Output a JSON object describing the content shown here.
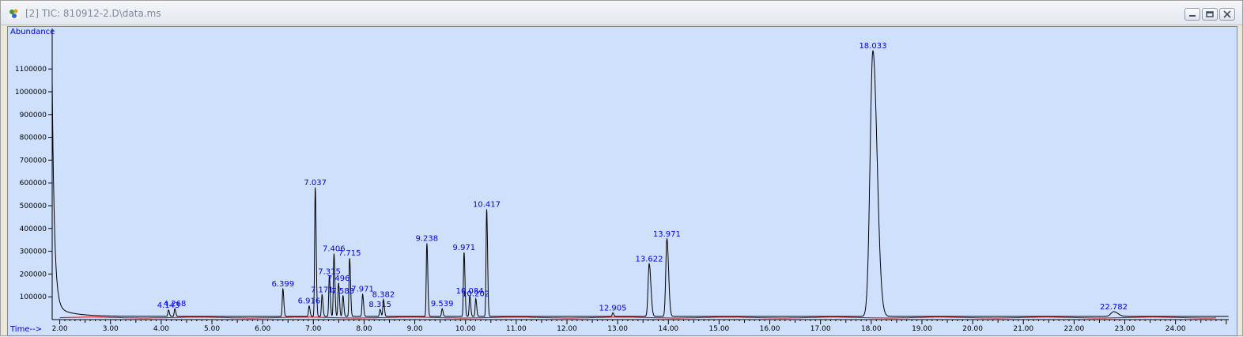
{
  "window": {
    "title": "[2] TIC: 810912-2.D\\data.ms",
    "icon": "chromatogram-app-icon",
    "controls": [
      "minimize-icon",
      "restore-icon",
      "close-icon"
    ]
  },
  "colors": {
    "plot_bg": "#cfe0fc",
    "trace": "#000000",
    "baseline": "#e00000",
    "peak_label": "#0000e0",
    "axis_text": "#0000cc"
  },
  "chart_data": {
    "type": "line",
    "ylabel": "Abundance",
    "xlabel": "Time-->",
    "xlim": [
      1.85,
      25.05
    ],
    "ylim": [
      0,
      1250000
    ],
    "xticks": [
      "2.00",
      "3.00",
      "4.00",
      "5.00",
      "6.00",
      "7.00",
      "8.00",
      "9.00",
      "10.00",
      "11.00",
      "12.00",
      "13.00",
      "14.00",
      "15.00",
      "16.00",
      "17.00",
      "18.00",
      "19.00",
      "20.00",
      "21.00",
      "22.00",
      "23.00",
      "24.00"
    ],
    "yticks": [
      "100000",
      "200000",
      "300000",
      "400000",
      "500000",
      "600000",
      "700000",
      "800000",
      "900000",
      "1000000",
      "1100000"
    ],
    "peaks": [
      {
        "label": "4.143",
        "x": 4.143,
        "y": 42000
      },
      {
        "label": "4.268",
        "x": 4.268,
        "y": 48000
      },
      {
        "label": "6.399",
        "x": 6.399,
        "y": 135000
      },
      {
        "label": "6.916",
        "x": 6.916,
        "y": 60000
      },
      {
        "label": "7.037",
        "x": 7.037,
        "y": 580000
      },
      {
        "label": "7.171",
        "x": 7.171,
        "y": 110000
      },
      {
        "label": "7.315",
        "x": 7.315,
        "y": 190000
      },
      {
        "label": "7.406",
        "x": 7.406,
        "y": 290000
      },
      {
        "label": "7.496",
        "x": 7.496,
        "y": 160000
      },
      {
        "label": "7.583",
        "x": 7.583,
        "y": 105000
      },
      {
        "label": "7.715",
        "x": 7.715,
        "y": 270000
      },
      {
        "label": "7.971",
        "x": 7.971,
        "y": 112000
      },
      {
        "label": "8.315",
        "x": 8.315,
        "y": 45000
      },
      {
        "label": "8.382",
        "x": 8.382,
        "y": 88000
      },
      {
        "label": "9.238",
        "x": 9.238,
        "y": 335000
      },
      {
        "label": "9.539",
        "x": 9.539,
        "y": 48000
      },
      {
        "label": "9.971",
        "x": 9.971,
        "y": 295000
      },
      {
        "label": "10.084",
        "x": 10.084,
        "y": 105000
      },
      {
        "label": "10.202",
        "x": 10.202,
        "y": 92000
      },
      {
        "label": "10.417",
        "x": 10.417,
        "y": 485000
      },
      {
        "label": "12.905",
        "x": 12.905,
        "y": 30000
      },
      {
        "label": "13.622",
        "x": 13.622,
        "y": 245000
      },
      {
        "label": "13.971",
        "x": 13.971,
        "y": 355000
      },
      {
        "label": "18.033",
        "x": 18.033,
        "y": 1180000
      },
      {
        "label": "22.782",
        "x": 22.782,
        "y": 35000
      }
    ]
  }
}
